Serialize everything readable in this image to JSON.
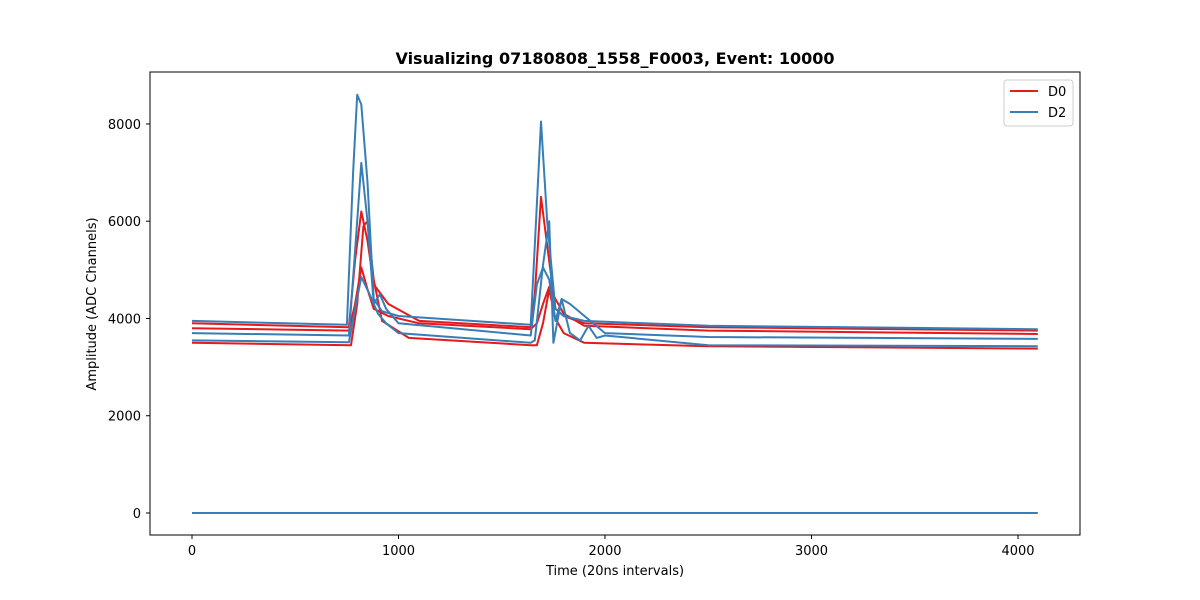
{
  "chart_data": {
    "type": "line",
    "title": "Visualizing 07180808_1558_F0003, Event: 10000",
    "xlabel": "Time (20ns intervals)",
    "ylabel": "Amplitude (ADC Channels)",
    "xlim": [
      -200,
      4300
    ],
    "ylim": [
      -450,
      9050
    ],
    "xticks": [
      0,
      1000,
      2000,
      3000,
      4000
    ],
    "yticks": [
      0,
      2000,
      4000,
      6000,
      8000
    ],
    "grid": false,
    "legend_position": "upper right",
    "legend": [
      {
        "label": "D0",
        "color": "#e41a1c"
      },
      {
        "label": "D2",
        "color": "#377eb8"
      }
    ],
    "series": [
      {
        "name": "D0",
        "color": "#e41a1c",
        "x": [
          0,
          760,
          790,
          820,
          850,
          880,
          950,
          1100,
          1640,
          1660,
          1690,
          1720,
          1760,
          1800,
          1900,
          2500,
          4096
        ],
        "y": [
          3900,
          3820,
          5200,
          6200,
          5600,
          4700,
          4300,
          3950,
          3820,
          4500,
          6500,
          5500,
          4200,
          4050,
          3900,
          3820,
          3750
        ]
      },
      {
        "name": "D0",
        "color": "#e41a1c",
        "x": [
          0,
          760,
          790,
          820,
          850,
          880,
          950,
          1100,
          1640,
          1670,
          1700,
          1730,
          1760,
          1800,
          1900,
          2500,
          4096
        ],
        "y": [
          3800,
          3750,
          4300,
          5050,
          4600,
          4200,
          4050,
          3900,
          3780,
          3900,
          4300,
          4650,
          4400,
          4100,
          3850,
          3750,
          3680
        ]
      },
      {
        "name": "D0",
        "color": "#e41a1c",
        "x": [
          0,
          770,
          800,
          830,
          850,
          880,
          920,
          1050,
          1640,
          1670,
          1700,
          1730,
          1760,
          1800,
          1900,
          2500,
          4096
        ],
        "y": [
          3500,
          3450,
          4300,
          5900,
          6000,
          4800,
          3950,
          3600,
          3450,
          3450,
          3900,
          4600,
          4000,
          3700,
          3500,
          3430,
          3380
        ]
      },
      {
        "name": "D2",
        "color": "#377eb8",
        "x": [
          0,
          750,
          780,
          800,
          820,
          850,
          880,
          920,
          1000,
          1640,
          1660,
          1690,
          1720,
          1760,
          1800,
          1900,
          2500,
          4096
        ],
        "y": [
          3950,
          3870,
          7000,
          8600,
          8400,
          6800,
          4400,
          4150,
          4050,
          3870,
          5500,
          8050,
          6000,
          4200,
          4050,
          3950,
          3850,
          3780
        ]
      },
      {
        "name": "D2",
        "color": "#377eb8",
        "x": [
          0,
          760,
          790,
          820,
          850,
          880,
          910,
          940,
          1000,
          1640,
          1670,
          1700,
          1730,
          1760,
          1790,
          1830,
          2000,
          2500,
          4096
        ],
        "y": [
          3700,
          3650,
          5400,
          7200,
          6000,
          4300,
          4500,
          4200,
          3900,
          3650,
          4700,
          5050,
          4800,
          3950,
          4400,
          4300,
          3700,
          3620,
          3580
        ]
      },
      {
        "name": "D2",
        "color": "#377eb8",
        "x": [
          0,
          760,
          790,
          820,
          860,
          900,
          940,
          1000,
          1640,
          1660,
          1700,
          1730,
          1750,
          1790,
          1830,
          1880,
          1920,
          1960,
          2000,
          2500,
          4096
        ],
        "y": [
          3550,
          3510,
          4200,
          4850,
          4500,
          4100,
          3900,
          3700,
          3500,
          3550,
          5100,
          6000,
          3500,
          4400,
          3700,
          3550,
          3850,
          3600,
          3650,
          3450,
          3430
        ]
      },
      {
        "name": "D2",
        "color": "#377eb8",
        "x": [
          0,
          4096
        ],
        "y": [
          0,
          0
        ]
      }
    ]
  }
}
